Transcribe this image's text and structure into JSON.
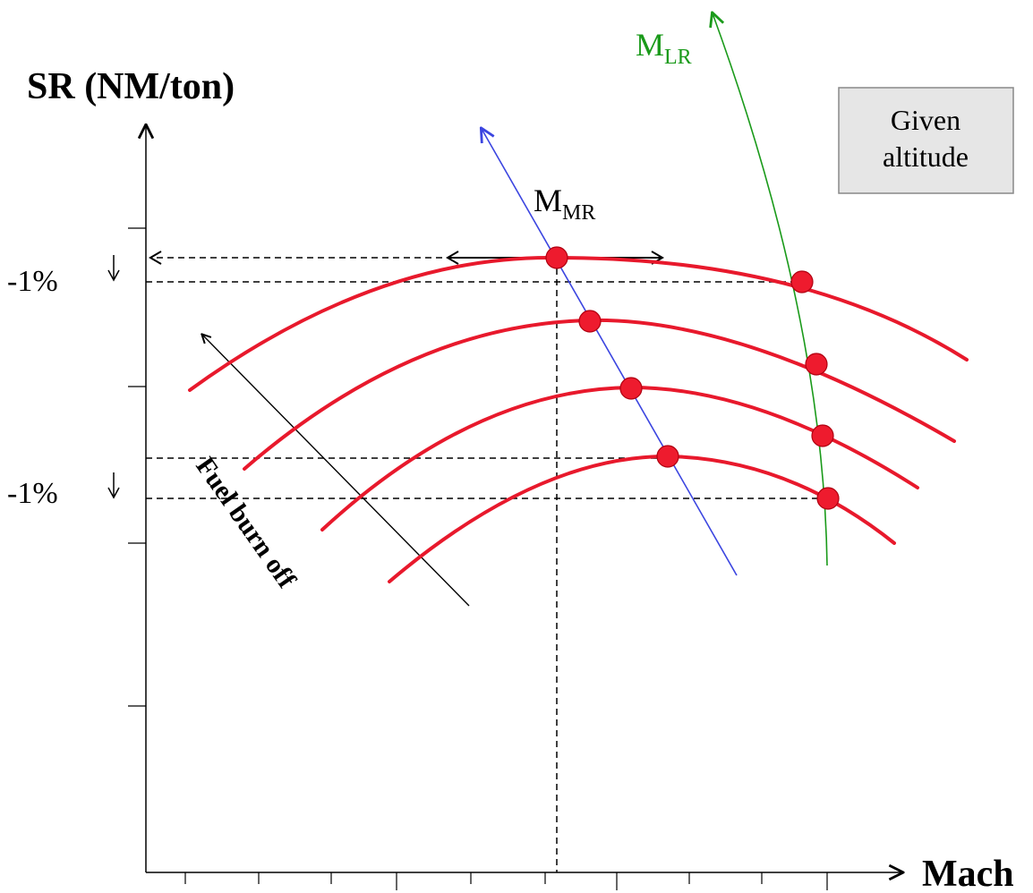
{
  "axes": {
    "y_title": "SR (NM/ton)",
    "x_title": "Mach"
  },
  "percent_labels": [
    "-1%",
    "-1%"
  ],
  "lines": {
    "mmr": {
      "base": "M",
      "sub": "MR",
      "color": "#3b45e0"
    },
    "mlr": {
      "base": "M",
      "sub": "LR",
      "color": "#1a9a1a"
    }
  },
  "annotation": "Fuel burn off",
  "info_box": {
    "line1": "Given",
    "line2": "altitude"
  },
  "colors": {
    "curve": "#e8192c",
    "point": "#ee1b2e",
    "axis": "#000000",
    "box_fill": "#e6e6e6"
  },
  "curves": [
    {
      "name": "sr-curve-1"
    },
    {
      "name": "sr-curve-2"
    },
    {
      "name": "sr-curve-3"
    },
    {
      "name": "sr-curve-4"
    }
  ]
}
